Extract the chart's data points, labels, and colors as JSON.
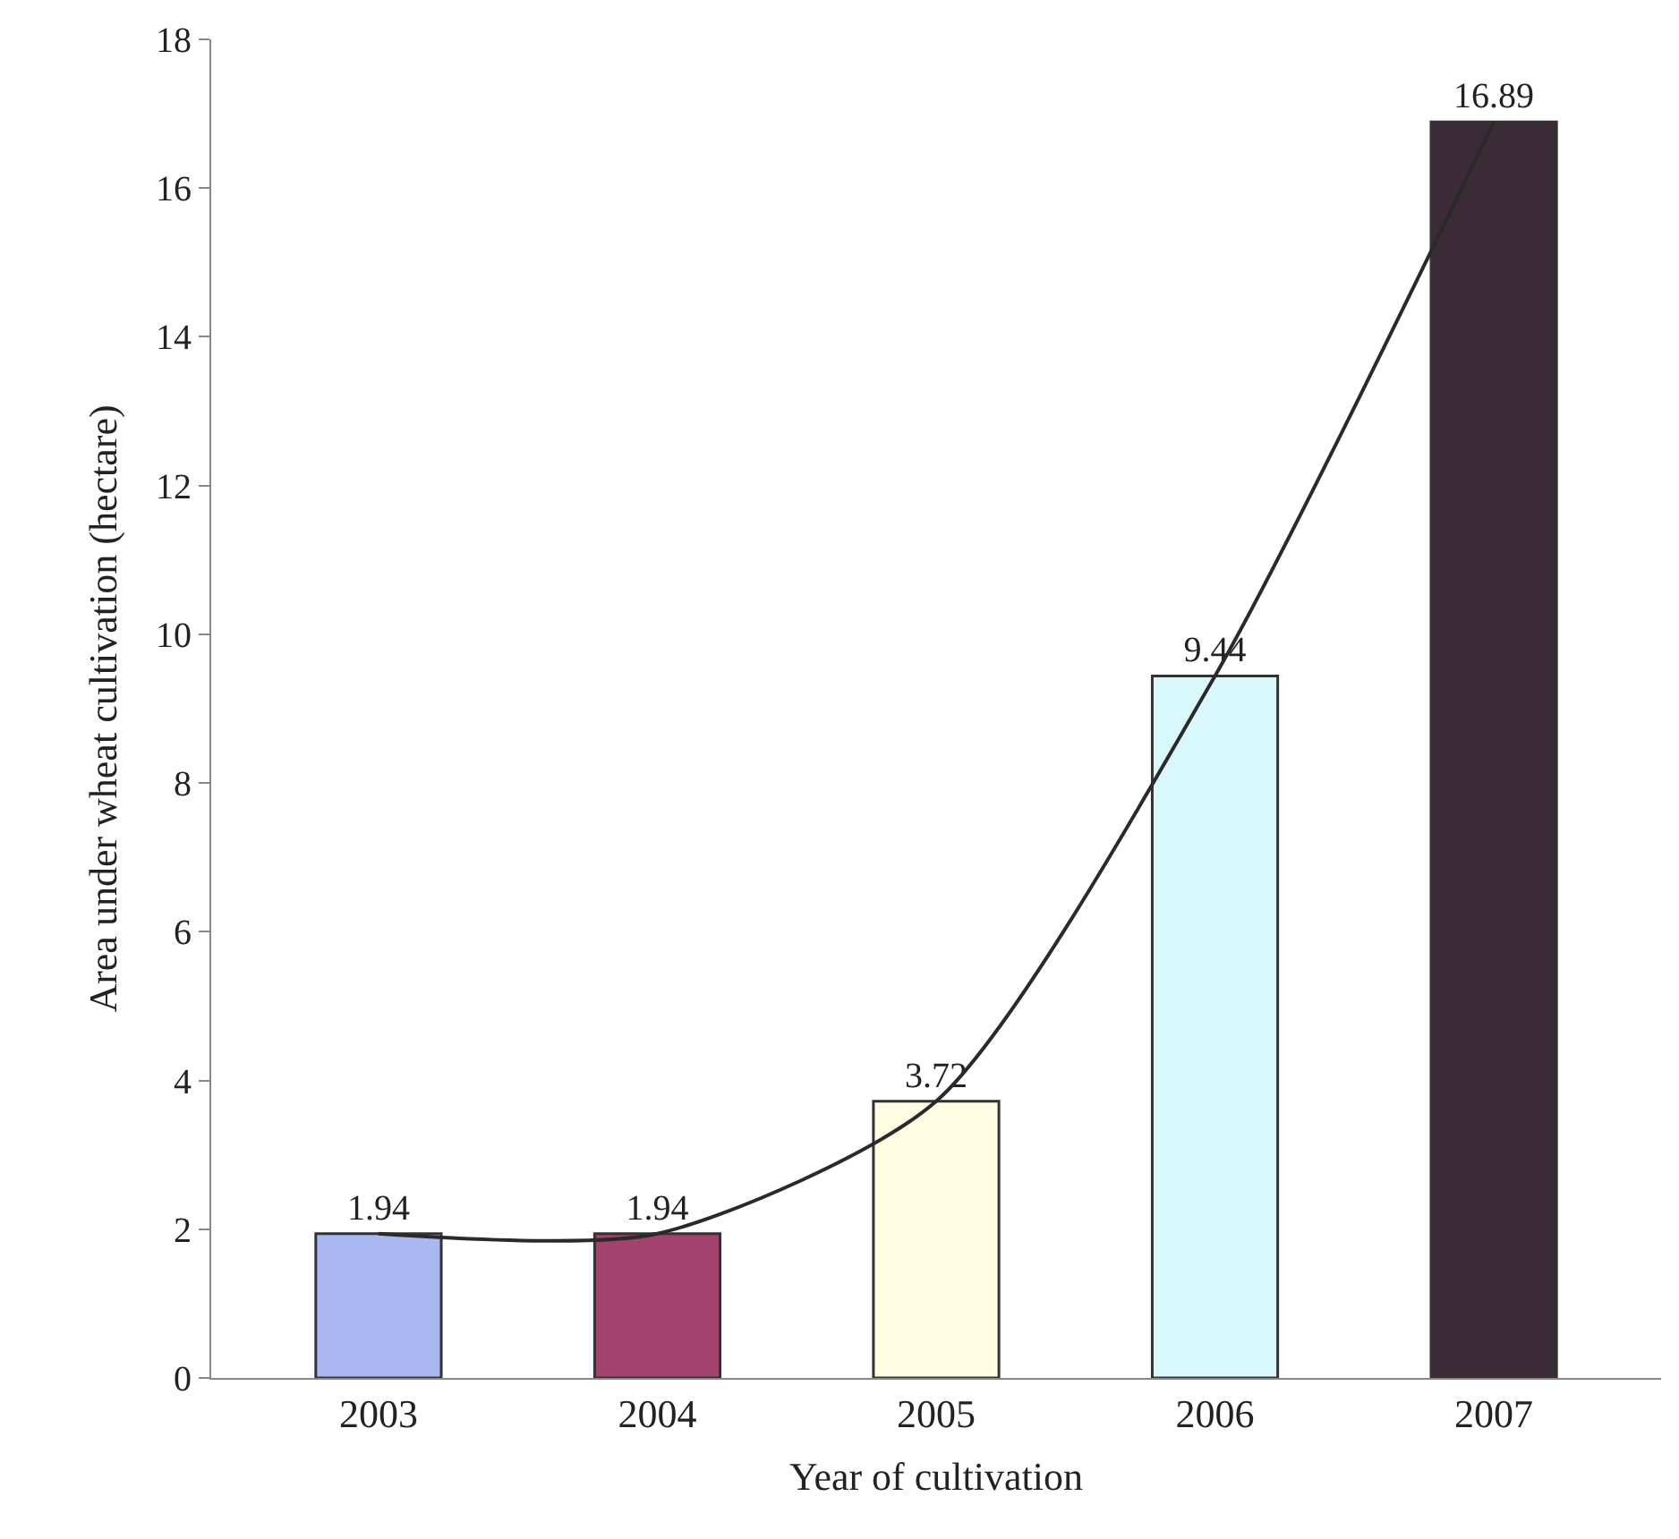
{
  "chart_data": {
    "type": "bar",
    "xlabel": "Year of cultivation",
    "ylabel": "Area under wheat cultivation (hectare)",
    "categories": [
      "2003",
      "2004",
      "2005",
      "2006",
      "2007"
    ],
    "ylim": [
      0,
      18
    ],
    "yticks": [
      0,
      2,
      4,
      6,
      8,
      10,
      12,
      14,
      16,
      18
    ],
    "series": [
      {
        "values": [
          1.94,
          1.94,
          3.72,
          9.44,
          16.89
        ],
        "value_labels": [
          "1.94",
          "1.94",
          "3.72",
          "9.44",
          "16.89"
        ],
        "colors": [
          "#aab8f2",
          "#a3426c",
          "#fffde2",
          "#d9f8fc",
          "#3b2b36"
        ]
      },
      {
        "type": "line",
        "color": "#2a2a2a",
        "values": [
          1.94,
          1.94,
          3.72,
          9.44,
          16.89
        ],
        "marker": "none",
        "line_style": "solid"
      }
    ]
  }
}
